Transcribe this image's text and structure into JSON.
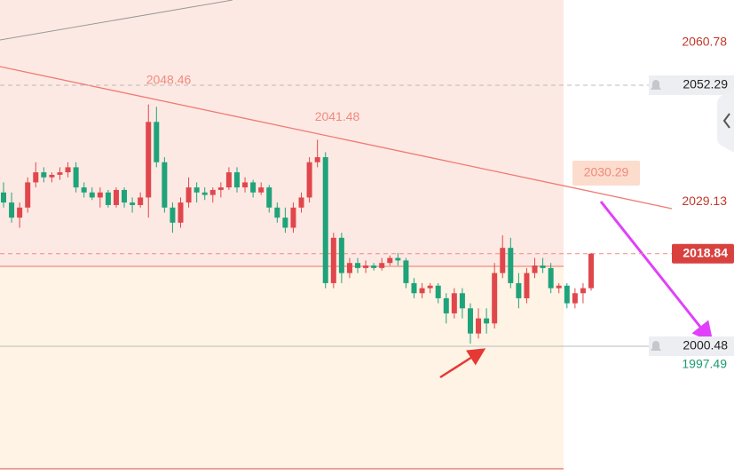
{
  "chart_data": {
    "type": "candlestick",
    "up_color": "#e0474c",
    "down_color": "#1fa37a",
    "ylim": [
      1975.8,
      2069.2
    ],
    "yticks": [
      2060.78
    ],
    "ohlc": [
      [
        2031,
        2033,
        2028,
        2029
      ],
      [
        2029,
        2031,
        2025,
        2026
      ],
      [
        2026,
        2029,
        2024,
        2028
      ],
      [
        2028,
        2034,
        2027,
        2033
      ],
      [
        2033,
        2037,
        2032,
        2035
      ],
      [
        2035,
        2036,
        2033,
        2034
      ],
      [
        2034,
        2035,
        2033,
        2034.5
      ],
      [
        2034.5,
        2036,
        2033.5,
        2035
      ],
      [
        2035,
        2037,
        2034,
        2036
      ],
      [
        2036,
        2037,
        2031,
        2032
      ],
      [
        2032,
        2033,
        2030,
        2031
      ],
      [
        2031,
        2032,
        2029.5,
        2030
      ],
      [
        2030,
        2032,
        2028,
        2031
      ],
      [
        2031,
        2031.5,
        2028,
        2028.5
      ],
      [
        2028.5,
        2032,
        2028,
        2031.5
      ],
      [
        2031.5,
        2032,
        2028,
        2029
      ],
      [
        2029,
        2030,
        2027,
        2028.5
      ],
      [
        2028.5,
        2031,
        2028,
        2030
      ],
      [
        2030,
        2048.46,
        2026,
        2045
      ],
      [
        2045,
        2048,
        2036,
        2037
      ],
      [
        2037,
        2038,
        2027,
        2028
      ],
      [
        2028,
        2029,
        2023,
        2025
      ],
      [
        2025,
        2030,
        2024,
        2029
      ],
      [
        2029,
        2034,
        2028,
        2032
      ],
      [
        2032,
        2033,
        2029,
        2031
      ],
      [
        2031,
        2032,
        2029.5,
        2030.5
      ],
      [
        2030.5,
        2032,
        2029,
        2031.5
      ],
      [
        2031.5,
        2033,
        2030,
        2032
      ],
      [
        2032,
        2036,
        2031.5,
        2035
      ],
      [
        2035,
        2036,
        2031,
        2032
      ],
      [
        2032,
        2034,
        2031,
        2033
      ],
      [
        2033,
        2033.5,
        2030,
        2031
      ],
      [
        2031,
        2033,
        2030.5,
        2032
      ],
      [
        2032,
        2032.5,
        2027,
        2028
      ],
      [
        2028,
        2029,
        2025,
        2026
      ],
      [
        2026,
        2028,
        2023,
        2024
      ],
      [
        2024,
        2029,
        2023,
        2028
      ],
      [
        2028,
        2031,
        2027,
        2030
      ],
      [
        2030,
        2038,
        2029,
        2037
      ],
      [
        2037,
        2041.48,
        2036,
        2038
      ],
      [
        2038,
        2039,
        2012,
        2013
      ],
      [
        2013,
        2023,
        2012,
        2022
      ],
      [
        2022,
        2023,
        2013,
        2015
      ],
      [
        2015,
        2018,
        2014,
        2017
      ],
      [
        2017,
        2018,
        2015,
        2016
      ],
      [
        2016,
        2017.5,
        2015,
        2016.5
      ],
      [
        2016.5,
        2017,
        2015.5,
        2016
      ],
      [
        2016,
        2018,
        2015.5,
        2017
      ],
      [
        2017,
        2018.5,
        2016.5,
        2018
      ],
      [
        2018,
        2019,
        2016.5,
        2017.5
      ],
      [
        2017.5,
        2018,
        2012,
        2013
      ],
      [
        2013,
        2014,
        2010,
        2011
      ],
      [
        2011,
        2013,
        2010,
        2012
      ],
      [
        2012,
        2013,
        2011,
        2012.5
      ],
      [
        2012.5,
        2013,
        2009,
        2010
      ],
      [
        2010,
        2011,
        2005,
        2007
      ],
      [
        2007,
        2012,
        2006,
        2011
      ],
      [
        2011,
        2012,
        2006,
        2008
      ],
      [
        2008,
        2009,
        2001,
        2003
      ],
      [
        2003,
        2008,
        2002,
        2006
      ],
      [
        2006,
        2008,
        2003,
        2005
      ],
      [
        2005,
        2017,
        2004,
        2015
      ],
      [
        2015,
        2022.5,
        2014,
        2020
      ],
      [
        2020,
        2022,
        2012,
        2013
      ],
      [
        2013,
        2015,
        2008,
        2010
      ],
      [
        2010,
        2016,
        2009,
        2015
      ],
      [
        2015,
        2018,
        2014,
        2016.5
      ],
      [
        2016.5,
        2018,
        2015,
        2016
      ],
      [
        2016,
        2017,
        2011,
        2012
      ],
      [
        2012,
        2013,
        2011,
        2012.5
      ],
      [
        2012.5,
        2013,
        2008,
        2009
      ],
      [
        2009,
        2012,
        2008,
        2011
      ],
      [
        2011,
        2013,
        2009,
        2012
      ],
      [
        2012,
        2019,
        2011.5,
        2018.84
      ]
    ],
    "annotations": [
      2048.46,
      2041.48,
      2030.29
    ],
    "price_tags": [
      {
        "value": 2052.29,
        "style": "gray",
        "line": "dashed"
      },
      {
        "value": 2029.13,
        "style": "red-text",
        "line": "none"
      },
      {
        "value": 2018.84,
        "style": "red",
        "line": "dashed"
      },
      {
        "value": 2000.48,
        "style": "gray",
        "line": "solid"
      },
      {
        "value": 1997.49,
        "style": "green-text",
        "line": "none"
      }
    ]
  }
}
